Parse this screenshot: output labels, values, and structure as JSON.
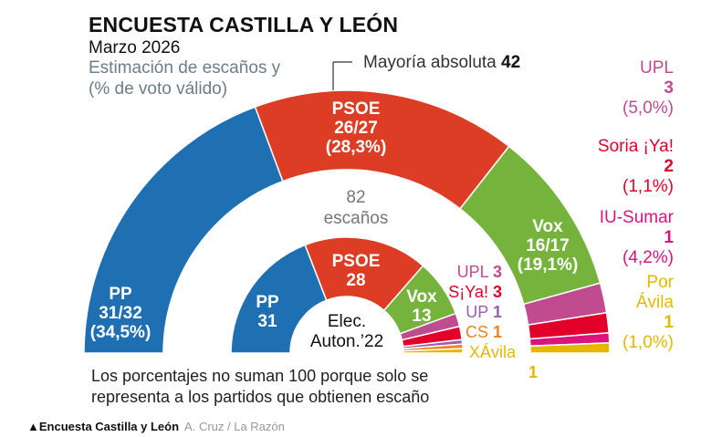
{
  "header": {
    "title": "ENCUESTA CASTILLA Y LEÓN",
    "date": "Marzo 2026",
    "subtitle_line1": "Estimación de escaños y",
    "subtitle_line2": "(% de voto válido)"
  },
  "majority": {
    "label": "Mayoría absoluta",
    "value": "42"
  },
  "center_label": {
    "seats": "82",
    "word": "escaños"
  },
  "inner_center_label": {
    "line1": "Elec.",
    "line2": "Auton.’22"
  },
  "note": {
    "line1": "Los porcentajes no suman 100 porque solo se",
    "line2": "representa a los partidos que obtienen escaño"
  },
  "footer": {
    "marker": "▲",
    "title": "Encuesta Castilla y León",
    "credit": "A. Cruz / La Razón"
  },
  "chart_data": [
    {
      "type": "pie",
      "subtype": "half-donut",
      "ring": "outer",
      "title": "Estimación de escaños (% de voto válido)",
      "total_seats": 82,
      "series": [
        {
          "name": "PP",
          "seats": "31/32",
          "seats_mid": 31.5,
          "vote_pct": "34,5%",
          "color": "#1f6fb3"
        },
        {
          "name": "PSOE",
          "seats": "26/27",
          "seats_mid": 26.5,
          "vote_pct": "28,3%",
          "color": "#dd3d24"
        },
        {
          "name": "Vox",
          "seats": "16/17",
          "seats_mid": 16.5,
          "vote_pct": "19,1%",
          "color": "#76b33c"
        },
        {
          "name": "UPL",
          "seats": "3",
          "seats_mid": 3,
          "vote_pct": "5,0%",
          "color": "#c04b8e"
        },
        {
          "name": "Soria ¡Ya!",
          "seats": "2",
          "seats_mid": 2,
          "vote_pct": "1,1%",
          "color": "#e2002b"
        },
        {
          "name": "IU-Sumar",
          "seats": "1",
          "seats_mid": 1,
          "vote_pct": "4,2%",
          "color": "#dc137d"
        },
        {
          "name": "Por Ávila",
          "name_line1": "Por",
          "name_line2": "Ávila",
          "seats": "1",
          "seats_mid": 1,
          "vote_pct": "1,0%",
          "color": "#e5b800"
        }
      ]
    },
    {
      "type": "pie",
      "subtype": "half-donut",
      "ring": "inner",
      "title": "Elec. Auton.’22",
      "series": [
        {
          "name": "PP",
          "seats": 31,
          "color": "#1f6fb3"
        },
        {
          "name": "PSOE",
          "seats": 28,
          "color": "#dd3d24"
        },
        {
          "name": "Vox",
          "seats": 13,
          "color": "#76b33c"
        },
        {
          "name": "UPL",
          "seats": 3,
          "color": "#c04b8e"
        },
        {
          "name": "S¡Ya!",
          "seats": 3,
          "color": "#e2002b"
        },
        {
          "name": "UP",
          "seats": 1,
          "color": "#9b5fb0"
        },
        {
          "name": "CS",
          "seats": 1,
          "color": "#f0821e"
        },
        {
          "name": "XÁvila",
          "seats": 1,
          "color": "#e5b800"
        }
      ]
    }
  ]
}
